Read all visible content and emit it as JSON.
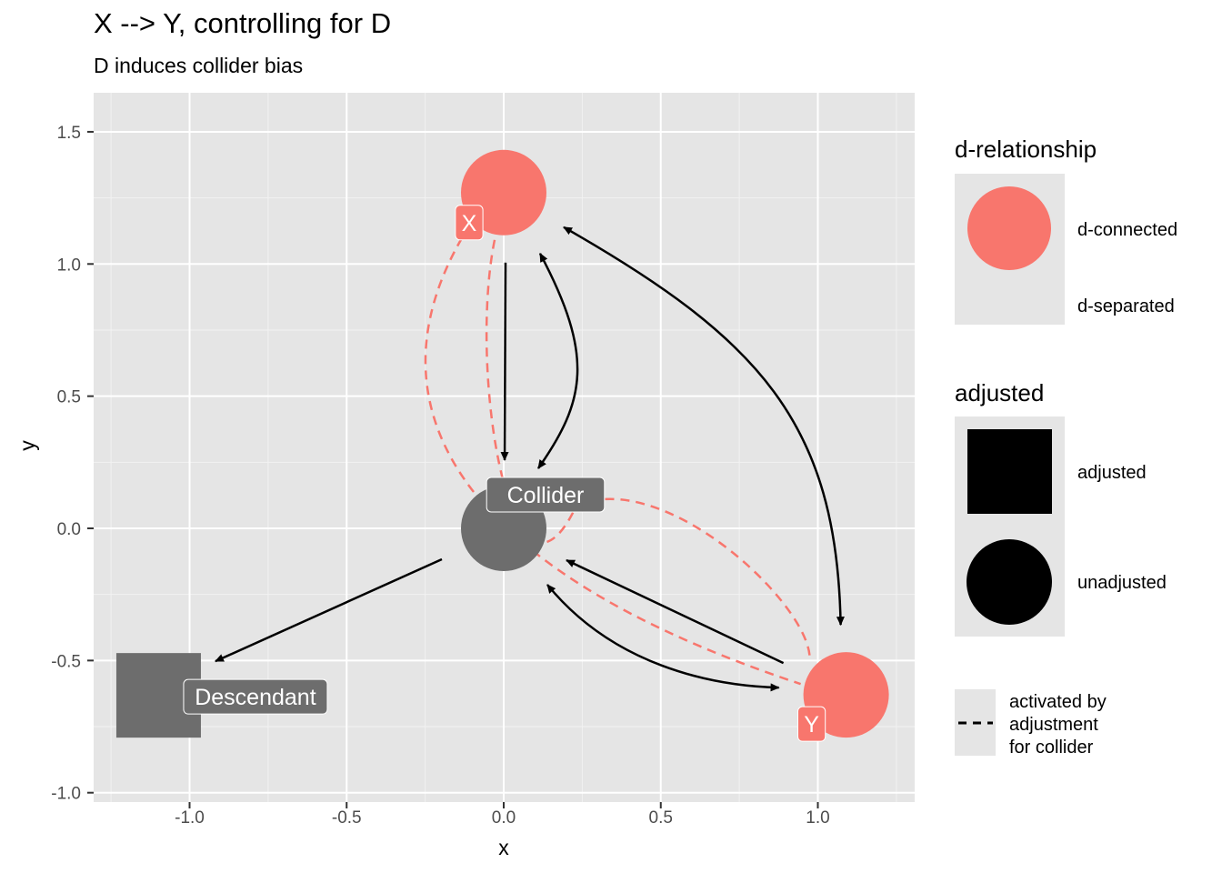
{
  "title": "X --> Y, controlling for D",
  "subtitle": "D induces collider bias",
  "chart_data": {
    "type": "dag",
    "xlabel": "x",
    "ylabel": "y",
    "xlim": [
      -1.25,
      1.25
    ],
    "ylim": [
      -1.0,
      1.6
    ],
    "x_ticks": [
      -1.0,
      -0.5,
      0.0,
      0.5,
      1.0
    ],
    "y_ticks": [
      -1.0,
      -0.5,
      0.0,
      0.5,
      1.0,
      1.5
    ],
    "x_tick_labels": [
      "-1.0",
      "-0.5",
      "0.0",
      "0.5",
      "1.0"
    ],
    "y_tick_labels": [
      "-1.0",
      "-0.5",
      "0.0",
      "0.5",
      "1.0",
      "1.5"
    ],
    "grid": true,
    "nodes": [
      {
        "name": "X",
        "x": 0.0,
        "y": 1.27,
        "d_relationship": "d-connected",
        "adjusted": "unadjusted",
        "color": "#F8766D"
      },
      {
        "name": "Collider",
        "x": 0.0,
        "y": 0.0,
        "d_relationship": "d-separated",
        "adjusted": "unadjusted",
        "color": "#6d6d6d"
      },
      {
        "name": "Descendant",
        "x": -1.1,
        "y": -0.63,
        "d_relationship": "d-separated",
        "adjusted": "adjusted",
        "color": "#6d6d6d"
      },
      {
        "name": "Y",
        "x": 1.09,
        "y": -0.63,
        "d_relationship": "d-connected",
        "adjusted": "unadjusted",
        "color": "#F8766D"
      }
    ],
    "edges": [
      {
        "from": "X",
        "to": "Collider",
        "type": "directed"
      },
      {
        "from": "X",
        "to": "Collider",
        "type": "bidirected"
      },
      {
        "from": "X",
        "to": "Y",
        "type": "bidirected"
      },
      {
        "from": "Y",
        "to": "Collider",
        "type": "directed"
      },
      {
        "from": "Y",
        "to": "Collider",
        "type": "bidirected"
      },
      {
        "from": "Collider",
        "to": "Descendant",
        "type": "directed"
      },
      {
        "from": "X",
        "to": "Y",
        "type": "activated",
        "style": "dashed"
      },
      {
        "from": "X",
        "to": "Y",
        "type": "activated",
        "style": "dashed"
      }
    ],
    "legend": {
      "placement": "right",
      "groups": [
        {
          "title": "d-relationship",
          "entries": [
            {
              "label": "d-connected",
              "color": "#F8766D"
            },
            {
              "label": "d-separated",
              "color": ""
            }
          ]
        },
        {
          "title": "adjusted",
          "entries": [
            {
              "label": "adjusted",
              "shape": "square"
            },
            {
              "label": "unadjusted",
              "shape": "circle"
            }
          ]
        },
        {
          "title": "",
          "entries": [
            {
              "label_lines": [
                "activated by",
                "adjustment",
                "for collider"
              ],
              "linetype": "dashed"
            }
          ]
        }
      ]
    }
  }
}
